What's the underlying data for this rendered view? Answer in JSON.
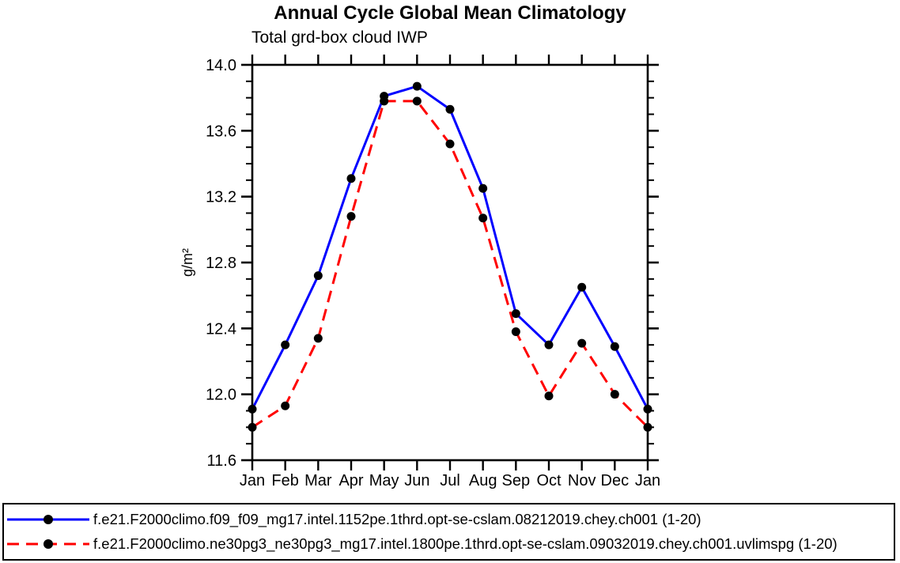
{
  "chart_data": {
    "type": "line",
    "title": "Annual Cycle Global Mean Climatology",
    "subtitle": "Total grd-box cloud IWP",
    "ylabel": "g/m²",
    "xlabel": "",
    "categories": [
      "Jan",
      "Feb",
      "Mar",
      "Apr",
      "May",
      "Jun",
      "Jul",
      "Aug",
      "Sep",
      "Oct",
      "Nov",
      "Dec",
      "Jan"
    ],
    "ylim": [
      11.6,
      14.0
    ],
    "y_major_tick_step": 0.4,
    "y_minor_tick_step": 0.1,
    "grid": false,
    "legend_position": "bottom-box",
    "marker": "filled-circle",
    "marker_color": "#000000",
    "series": [
      {
        "name": "f.e21.F2000climo.f09_f09_mg17.intel.1152pe.1thrd.opt-se-cslam.08212019.chey.ch001 (1-20)",
        "color": "#0000ff",
        "line_style": "solid",
        "values": [
          11.91,
          12.3,
          12.72,
          13.31,
          13.81,
          13.87,
          13.73,
          13.25,
          12.49,
          12.3,
          12.65,
          12.29,
          11.91
        ]
      },
      {
        "name": "f.e21.F2000climo.ne30pg3_ne30pg3_mg17.intel.1800pe.1thrd.opt-se-cslam.09032019.chey.ch001.uvlimspg (1-20)",
        "color": "#ff0000",
        "line_style": "dashed",
        "values": [
          11.8,
          11.93,
          12.34,
          13.08,
          13.78,
          13.78,
          13.52,
          13.07,
          12.38,
          11.99,
          12.31,
          12.0,
          11.8
        ]
      }
    ]
  }
}
